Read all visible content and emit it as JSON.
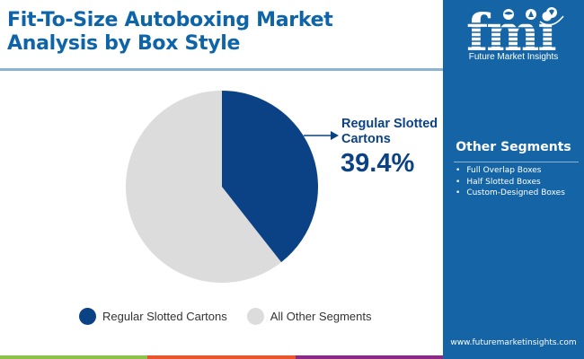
{
  "header": {
    "title_line1": "Fit-To-Size Autoboxing Market",
    "title_line2": "Analysis by Box Style"
  },
  "brand": {
    "logo_text": "fmi",
    "logo_subtitle": "Future Market Insights",
    "website": "www.futuremarketinsights.com",
    "panel_color": "#1565a6"
  },
  "other_segments": {
    "title": "Other Segments",
    "items": [
      "Full Overlap Boxes",
      "Half Slotted Boxes",
      "Custom-Designed Boxes"
    ]
  },
  "callout": {
    "label_line1": "Regular Slotted",
    "label_line2": "Cartons",
    "value": "39.4%"
  },
  "legend": {
    "items": [
      {
        "label": "Regular Slotted Cartons",
        "color": "#0b4285"
      },
      {
        "label": "All Other Segments",
        "color": "#dcdcdc"
      }
    ]
  },
  "bottom_strip_colors": [
    "#8bc34a",
    "#e8552b",
    "#8b2a86"
  ],
  "chart_data": {
    "type": "pie",
    "title": "Fit-To-Size Autoboxing Market Analysis by Box Style",
    "categories": [
      "Regular Slotted Cartons",
      "All Other Segments"
    ],
    "values": [
      39.4,
      60.6
    ],
    "colors": [
      "#0b4285",
      "#dcdcdc"
    ],
    "annotations": [
      {
        "label": "Regular Slotted Cartons",
        "value": "39.4%"
      }
    ],
    "legend_position": "bottom"
  }
}
